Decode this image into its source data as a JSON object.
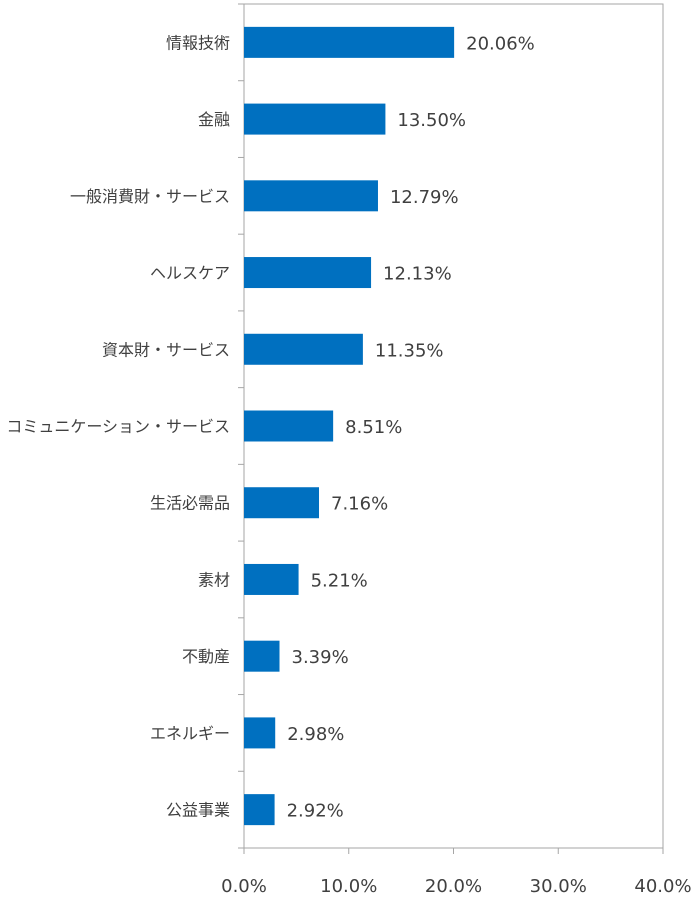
{
  "chart_data": {
    "type": "bar",
    "orientation": "horizontal",
    "categories": [
      "情報技術",
      "金融",
      "一般消費財・サービス",
      "ヘルスケア",
      "資本財・サービス",
      "コミュニケーション・サービス",
      "生活必需品",
      "素材",
      "不動産",
      "エネルギー",
      "公益事業"
    ],
    "values": [
      20.06,
      13.5,
      12.79,
      12.13,
      11.35,
      8.51,
      7.16,
      5.21,
      3.39,
      2.98,
      2.92
    ],
    "value_labels": [
      "20.06%",
      "13.50%",
      "12.79%",
      "12.13%",
      "11.35%",
      "8.51%",
      "7.16%",
      "5.21%",
      "3.39%",
      "2.98%",
      "2.92%"
    ],
    "x_ticks": [
      0,
      10,
      20,
      30,
      40
    ],
    "x_tick_labels": [
      "0.0%",
      "10.0%",
      "20.0%",
      "30.0%",
      "40.0%"
    ],
    "xlim": [
      0,
      40
    ],
    "title": "",
    "xlabel": "",
    "ylabel": "",
    "grid": false,
    "legend": "none",
    "bar_color": "#0070C0",
    "axis_color": "#A6A6A6",
    "text_color": "#404040"
  }
}
